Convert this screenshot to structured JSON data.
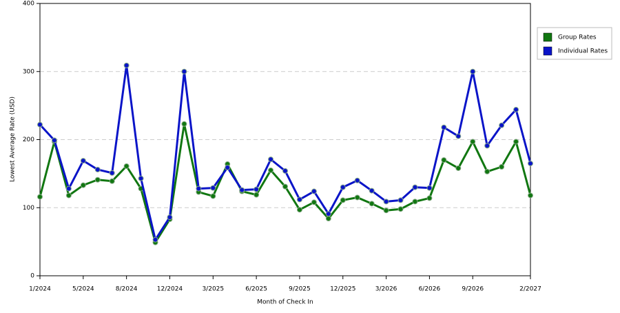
{
  "chart_data": {
    "type": "line",
    "x_label": "Month of Check In",
    "y_label": "Lowest Average Rate (USD)",
    "categories": [
      "1/2024",
      null,
      null,
      "5/2024",
      null,
      null,
      "8/2024",
      null,
      null,
      "12/2024",
      null,
      null,
      "3/2025",
      null,
      null,
      "6/2025",
      null,
      null,
      "9/2025",
      null,
      null,
      "12/2025",
      null,
      null,
      "3/2026",
      null,
      null,
      "6/2026",
      null,
      null,
      "9/2026",
      null,
      null,
      null,
      "2/2027"
    ],
    "series": [
      {
        "name": "Group Rates",
        "color": "#117711",
        "values": [
          116,
          197,
          118,
          133,
          141,
          139,
          161,
          128,
          49,
          83,
          223,
          123,
          117,
          164,
          124,
          119,
          155,
          131,
          97,
          108,
          84,
          111,
          115,
          106,
          96,
          98,
          109,
          114,
          170,
          158,
          197,
          153,
          160,
          197,
          118
        ]
      },
      {
        "name": "Individual Rates",
        "color": "#0a14c8",
        "values": [
          222,
          199,
          128,
          169,
          156,
          151,
          309,
          143,
          53,
          86,
          300,
          128,
          129,
          159,
          126,
          127,
          171,
          154,
          112,
          124,
          91,
          130,
          140,
          125,
          109,
          111,
          130,
          129,
          218,
          205,
          300,
          191,
          221,
          244,
          165
        ]
      }
    ],
    "ylim": [
      0,
      400
    ],
    "yticks": [
      0,
      100,
      200,
      300,
      400
    ],
    "grid": true,
    "legend": "right"
  }
}
